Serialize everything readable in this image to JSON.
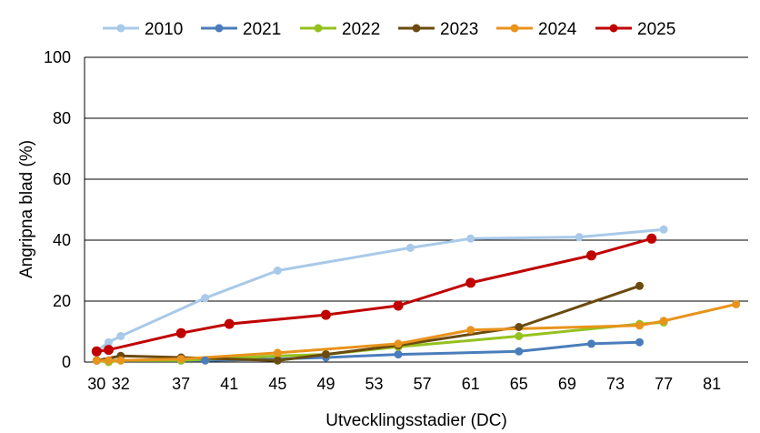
{
  "chart_data": {
    "type": "line",
    "xlabel": "Utvecklingsstadier (DC)",
    "ylabel": "Angripna blad (%)",
    "x_ticks": [
      "30",
      "32",
      "37",
      "41",
      "45",
      "49",
      "53",
      "57",
      "61",
      "65",
      "69",
      "73",
      "77",
      "81"
    ],
    "ylim": [
      0,
      100
    ],
    "y_ticks": [
      "0",
      "20",
      "40",
      "60",
      "80",
      "100"
    ],
    "grid": "horizontal",
    "legend_position": "top",
    "series": [
      {
        "name": "2010",
        "color": "#a9c9e8",
        "points": [
          [
            30,
            3.5
          ],
          [
            31,
            6.5
          ],
          [
            32,
            8.5
          ],
          [
            39,
            21
          ],
          [
            45,
            30
          ],
          [
            56,
            37.5
          ],
          [
            61,
            40.5
          ],
          [
            70,
            41
          ],
          [
            77,
            43.5
          ]
        ]
      },
      {
        "name": "2021",
        "color": "#4a7dbb",
        "points": [
          [
            30,
            0.5
          ],
          [
            31,
            0.5
          ],
          [
            37,
            0.5
          ],
          [
            39,
            0.5
          ],
          [
            45,
            1
          ],
          [
            49,
            1.5
          ],
          [
            55,
            2.5
          ],
          [
            65,
            3.5
          ],
          [
            71,
            6
          ],
          [
            75,
            6.5
          ]
        ]
      },
      {
        "name": "2022",
        "color": "#95c11f",
        "points": [
          [
            30,
            0.5
          ],
          [
            31,
            0
          ],
          [
            32,
            0.5
          ],
          [
            37,
            0.5
          ],
          [
            45,
            2
          ],
          [
            49,
            2.5
          ],
          [
            55,
            5
          ],
          [
            65,
            8.5
          ],
          [
            75,
            12.5
          ],
          [
            77,
            13
          ]
        ]
      },
      {
        "name": "2023",
        "color": "#6b4a0f",
        "points": [
          [
            30,
            0.5
          ],
          [
            32,
            2
          ],
          [
            37,
            1.5
          ],
          [
            45,
            0.5
          ],
          [
            49,
            2.5
          ],
          [
            55,
            5.5
          ],
          [
            65,
            11.5
          ],
          [
            75,
            25
          ]
        ]
      },
      {
        "name": "2024",
        "color": "#e8931c",
        "points": [
          [
            30,
            0.5
          ],
          [
            31,
            0.5
          ],
          [
            32,
            0.5
          ],
          [
            37,
            1
          ],
          [
            45,
            3
          ],
          [
            55,
            6
          ],
          [
            61,
            10.5
          ],
          [
            75,
            12
          ],
          [
            77,
            13.5
          ],
          [
            83,
            19
          ]
        ]
      },
      {
        "name": "2025",
        "color": "#c00000",
        "points": [
          [
            30,
            3.5
          ],
          [
            31,
            4
          ],
          [
            37,
            9.5
          ],
          [
            41,
            12.5
          ],
          [
            49,
            15.5
          ],
          [
            55,
            18.5
          ],
          [
            61,
            26
          ],
          [
            71,
            35
          ],
          [
            76,
            40.5
          ]
        ]
      }
    ]
  }
}
